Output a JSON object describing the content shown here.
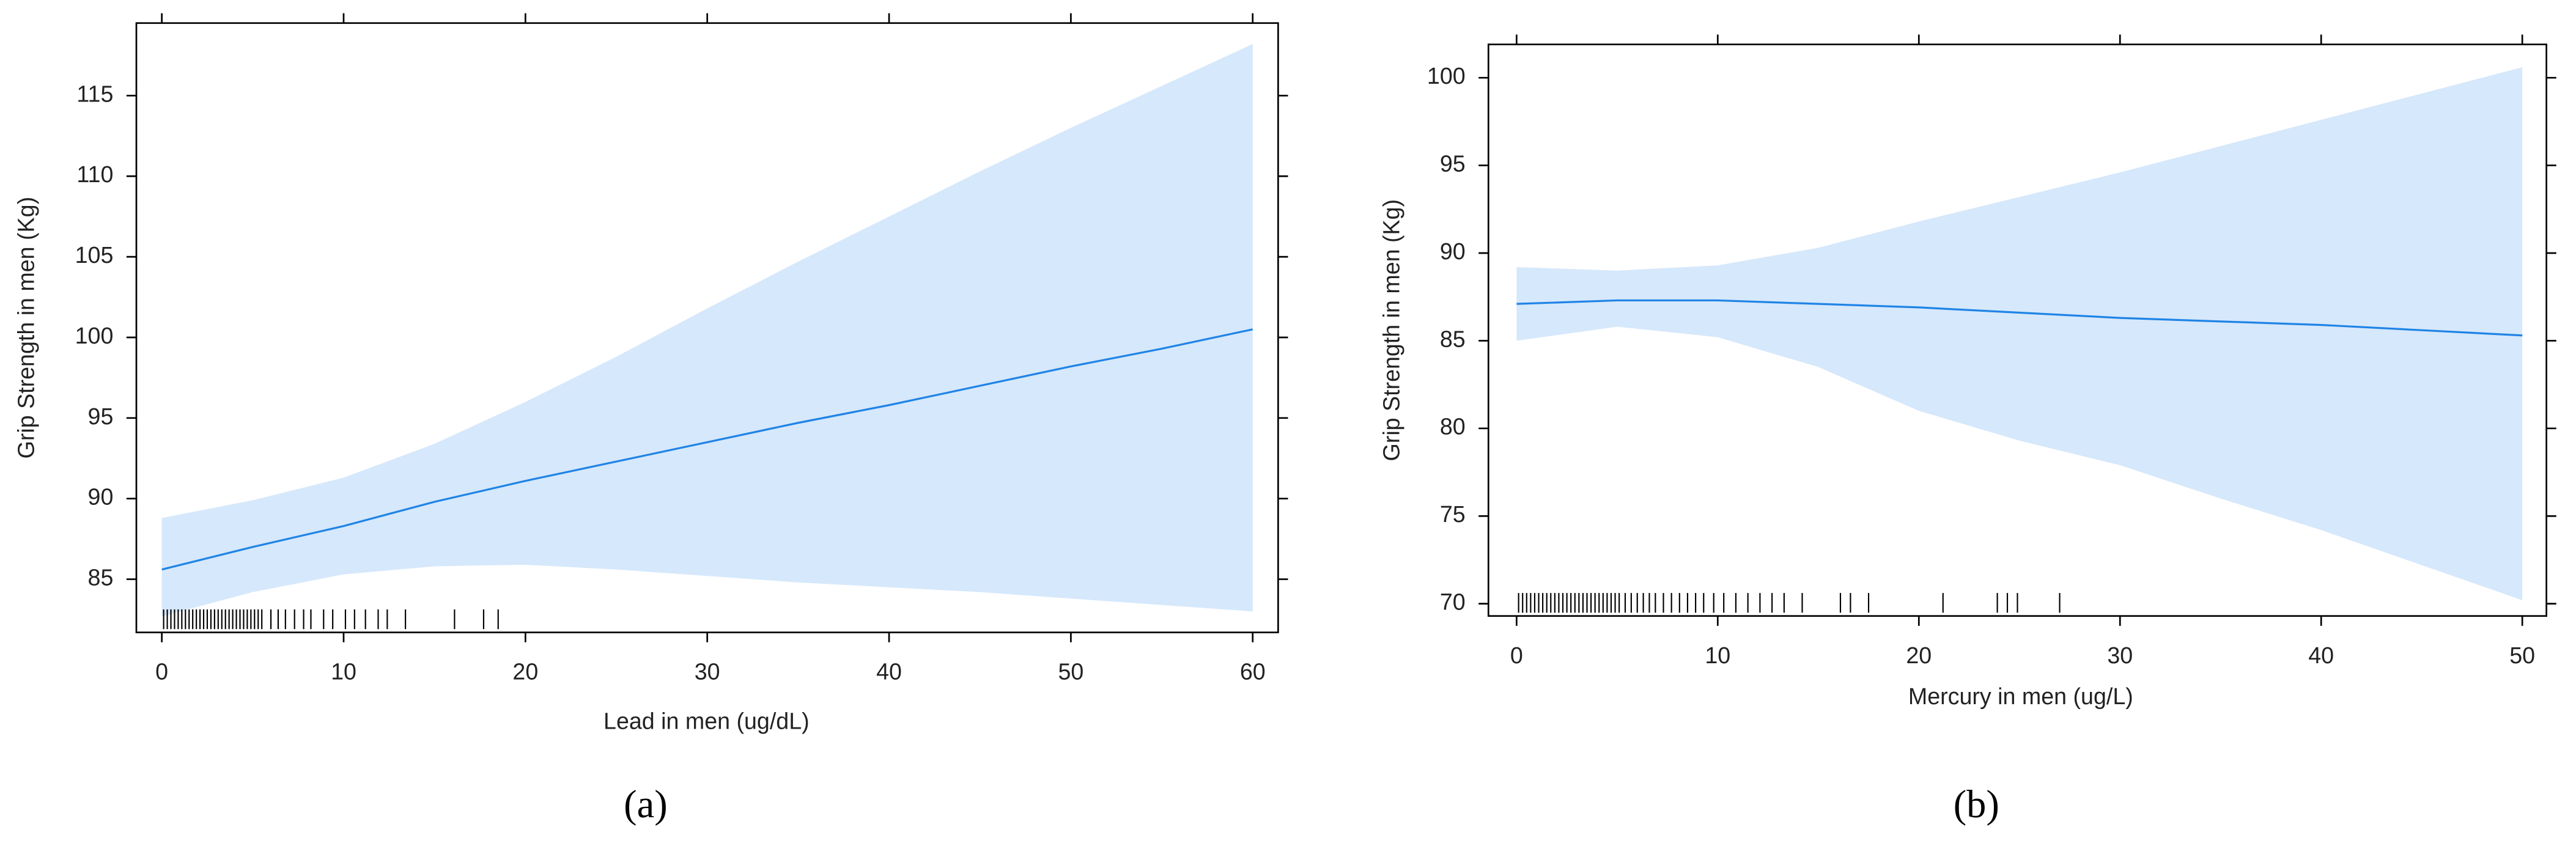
{
  "chart_data": [
    {
      "type": "line",
      "xlabel": "Lead in men (ug/dL)",
      "ylabel": "Grip Strength in men (Kg)",
      "caption": "(a)",
      "x": [
        0,
        5,
        10,
        15,
        20,
        25,
        30,
        35,
        40,
        45,
        50,
        55,
        60
      ],
      "fit": [
        85.6,
        87.0,
        88.3,
        89.8,
        91.1,
        92.3,
        93.5,
        94.7,
        95.8,
        97.0,
        98.2,
        99.3,
        100.5
      ],
      "upper": [
        88.8,
        89.9,
        91.3,
        93.4,
        96.0,
        98.8,
        101.8,
        104.7,
        107.5,
        110.3,
        113.0,
        115.6,
        118.2
      ],
      "lower": [
        82.7,
        84.2,
        85.3,
        85.8,
        85.9,
        85.6,
        85.2,
        84.8,
        84.5,
        84.2,
        83.8,
        83.4,
        83.0
      ],
      "rug": [
        0.1,
        0.3,
        0.5,
        0.7,
        0.9,
        1.1,
        1.3,
        1.5,
        1.7,
        1.9,
        2.1,
        2.3,
        2.5,
        2.7,
        2.9,
        3.1,
        3.3,
        3.5,
        3.7,
        3.9,
        4.1,
        4.3,
        4.5,
        4.7,
        4.9,
        5.1,
        5.3,
        5.5,
        6.0,
        6.4,
        6.8,
        7.3,
        7.8,
        8.2,
        8.9,
        9.4,
        10.1,
        10.6,
        11.2,
        11.9,
        12.4,
        13.4,
        16.1,
        17.7,
        18.5
      ],
      "line_color": "#1f84e6",
      "band_color": "#d6e8fb",
      "xlim": [
        -1.4,
        61.4
      ],
      "ylim": [
        81.7,
        119.5
      ],
      "xticks": [
        0,
        10,
        20,
        30,
        40,
        50,
        60
      ],
      "yticks": [
        85,
        90,
        95,
        100,
        105,
        110,
        115
      ]
    },
    {
      "type": "line",
      "xlabel": "Mercury in men (ug/L)",
      "ylabel": "Grip Strength in men (Kg)",
      "caption": "(b)",
      "x": [
        0,
        5,
        10,
        15,
        20,
        25,
        30,
        35,
        40,
        45,
        50
      ],
      "fit": [
        87.1,
        87.3,
        87.3,
        87.1,
        86.9,
        86.6,
        86.3,
        86.1,
        85.9,
        85.6,
        85.3
      ],
      "upper": [
        89.2,
        89.0,
        89.3,
        90.3,
        91.8,
        93.2,
        94.6,
        96.1,
        97.6,
        99.1,
        100.6
      ],
      "lower": [
        85.0,
        85.8,
        85.2,
        83.5,
        81.0,
        79.3,
        77.9,
        76.0,
        74.2,
        72.2,
        70.2
      ],
      "rug": [
        0.1,
        0.3,
        0.5,
        0.7,
        0.9,
        1.1,
        1.3,
        1.5,
        1.7,
        1.9,
        2.1,
        2.3,
        2.5,
        2.7,
        2.9,
        3.1,
        3.3,
        3.5,
        3.7,
        3.9,
        4.1,
        4.3,
        4.5,
        4.7,
        4.9,
        5.1,
        5.4,
        5.7,
        6.0,
        6.3,
        6.6,
        6.9,
        7.3,
        7.7,
        8.1,
        8.5,
        8.9,
        9.3,
        9.8,
        10.3,
        10.9,
        11.5,
        12.1,
        12.7,
        13.3,
        14.2,
        16.1,
        16.6,
        17.5,
        21.2,
        23.9,
        24.4,
        24.9,
        27.0
      ],
      "line_color": "#1f84e6",
      "band_color": "#d6e8fb",
      "xlim": [
        -1.4,
        51.2
      ],
      "ylim": [
        69.3,
        101.9
      ],
      "xticks": [
        0,
        10,
        20,
        30,
        40,
        50
      ],
      "yticks": [
        70,
        75,
        80,
        85,
        90,
        95,
        100
      ]
    }
  ]
}
